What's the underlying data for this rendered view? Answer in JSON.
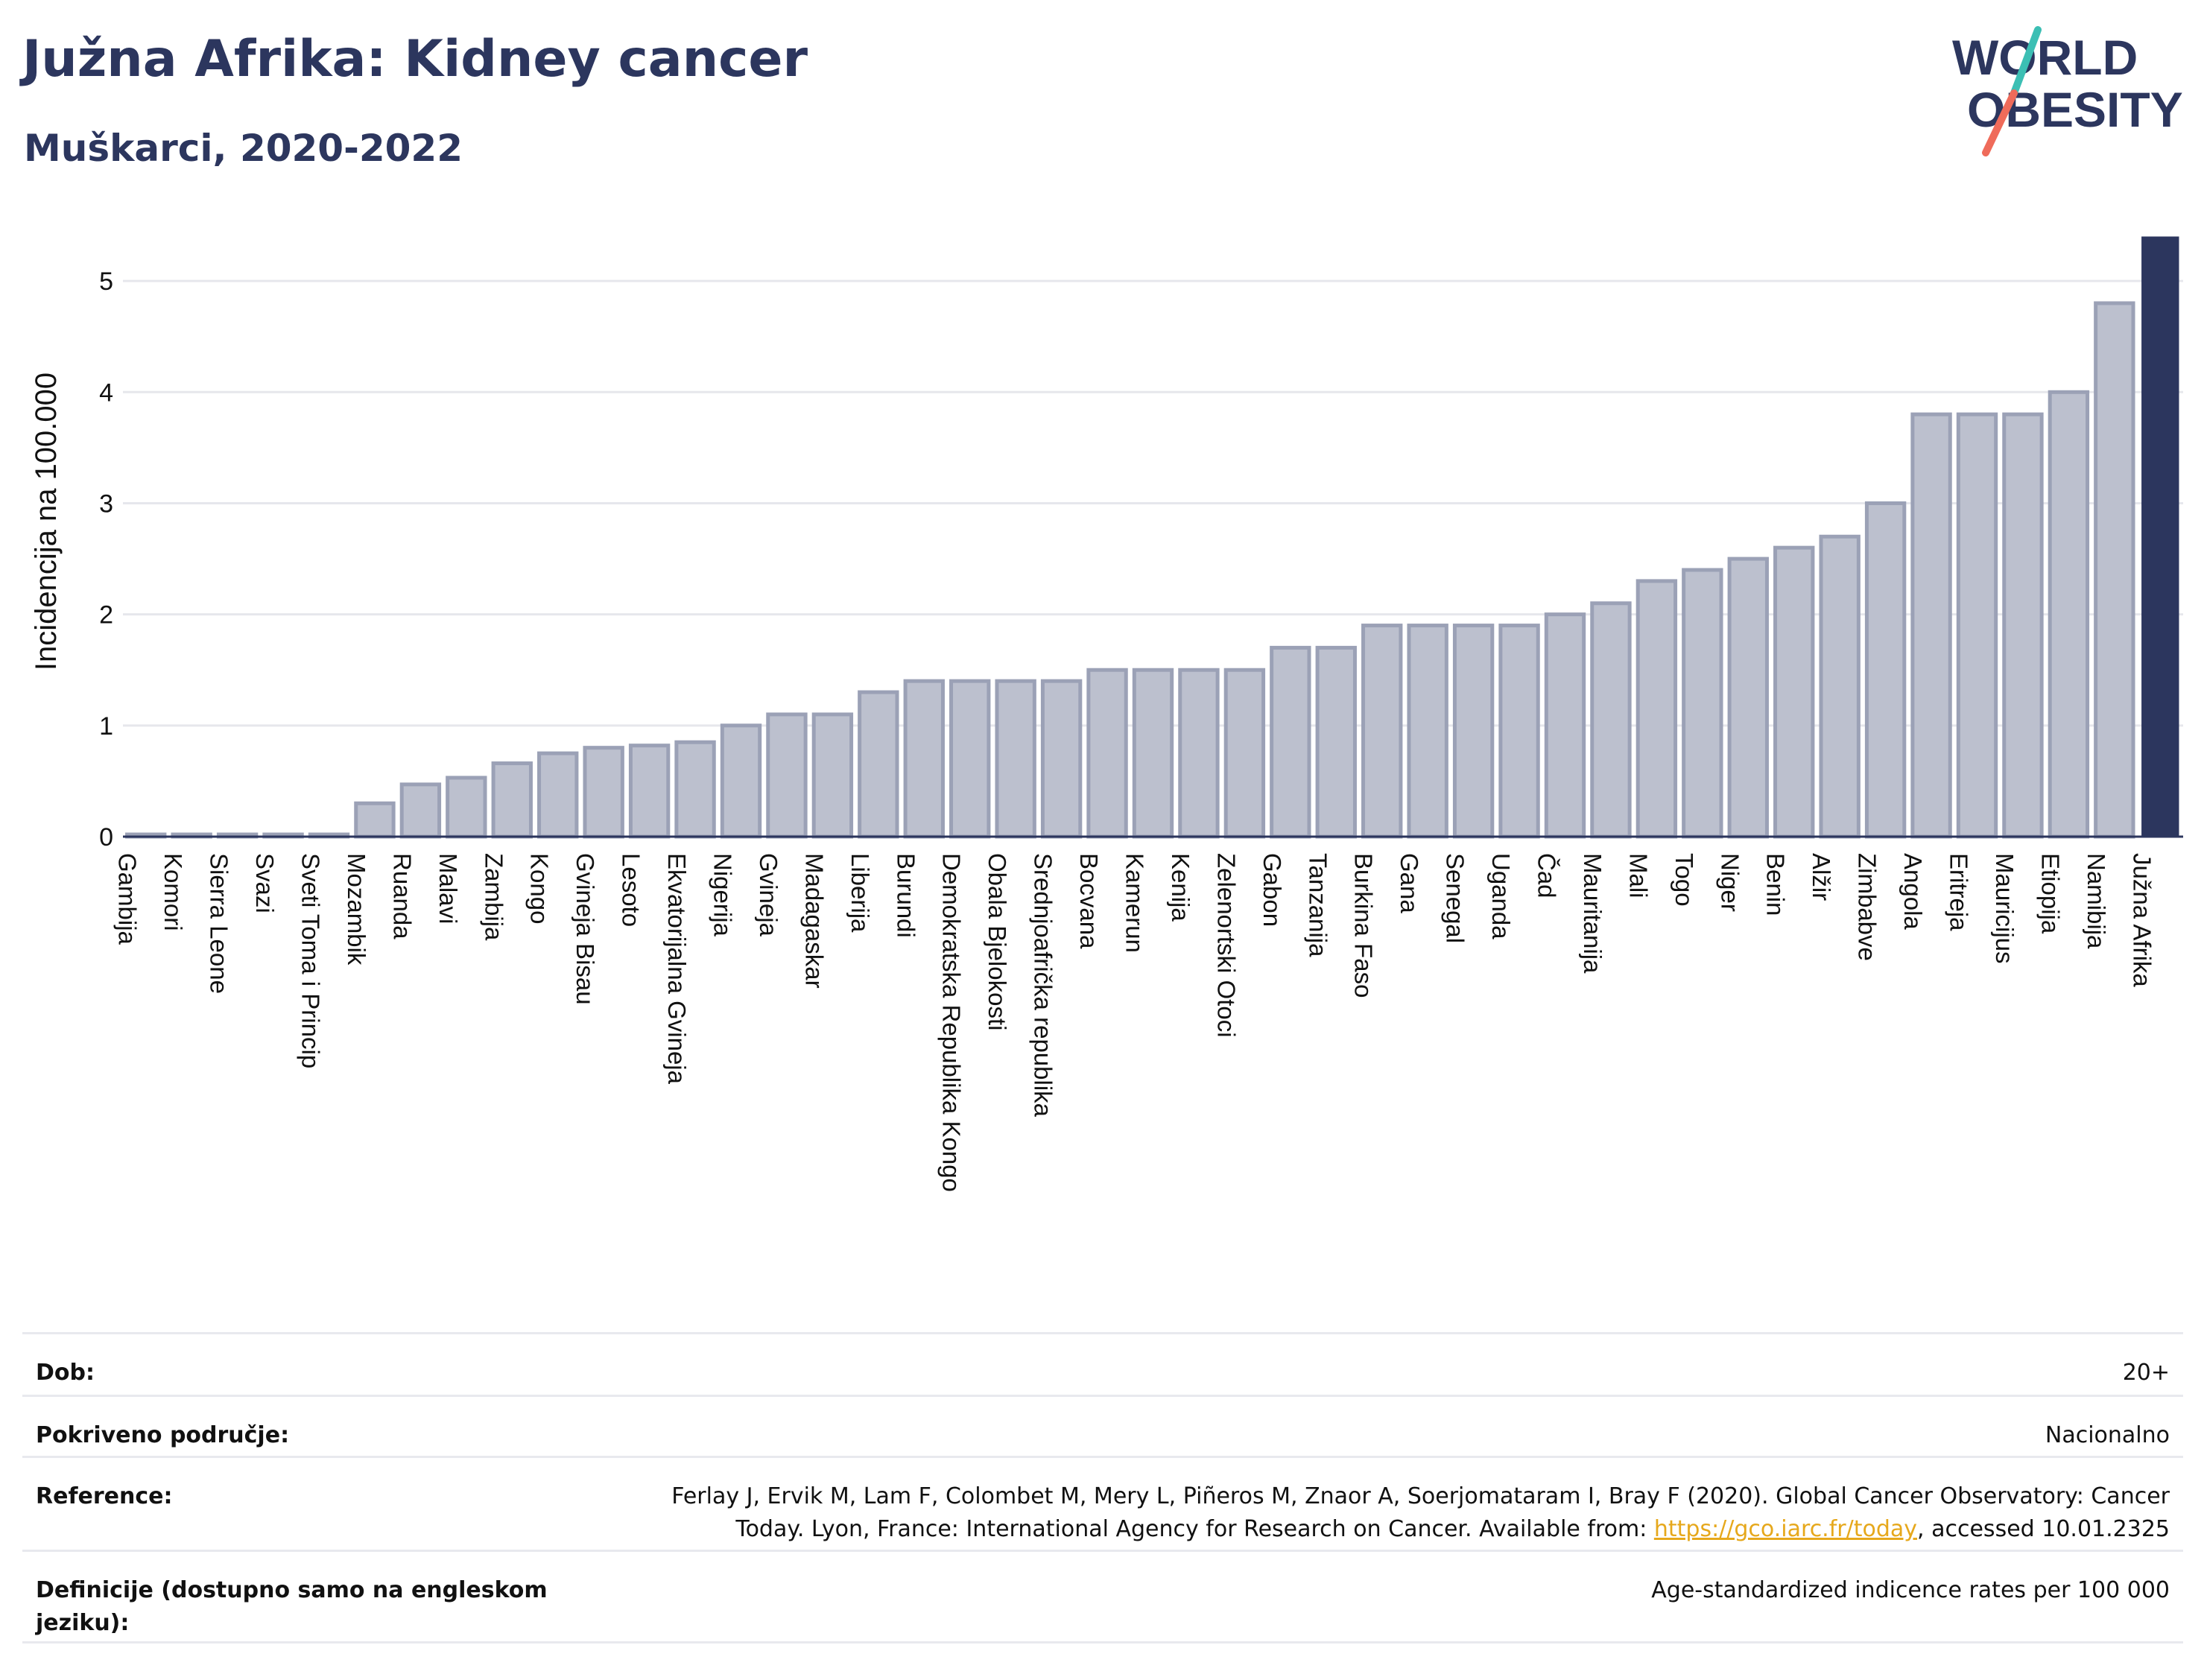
{
  "header": {
    "title": "Južna Afrika: Kidney cancer",
    "subtitle": "Muškarci, 2020-2022"
  },
  "logo": {
    "line1": "WORLD",
    "line2": "OBESITY"
  },
  "chart_data": {
    "type": "bar",
    "ylabel": "Incidencija na 100.000",
    "ylim": [
      0,
      5.45
    ],
    "yticks": [
      0,
      1,
      2,
      3,
      4,
      5
    ],
    "grid": true,
    "highlight": "Južna Afrika",
    "colors": {
      "bar": "#bcc0ce",
      "bar_border": "#9ba1b6",
      "highlight": "#2c365e"
    },
    "categories": [
      "Gambija",
      "Komori",
      "Sierra Leone",
      "Svazi",
      "Sveti Toma i Princip",
      "Mozambik",
      "Ruanda",
      "Malavi",
      "Zambija",
      "Kongo",
      "Gvineja Bisau",
      "Lesoto",
      "Ekvatorijalna Gvineja",
      "Nigerija",
      "Gvineja",
      "Madagaskar",
      "Liberija",
      "Burundi",
      "Demokratska Republika Kongo",
      "Obala Bjelokosti",
      "Srednjoafrička republika",
      "Bocvana",
      "Kamerun",
      "Kenija",
      "Zelenortski Otoci",
      "Gabon",
      "Tanzanija",
      "Burkina Faso",
      "Gana",
      "Senegal",
      "Uganda",
      "Čad",
      "Mauritanija",
      "Mali",
      "Togo",
      "Niger",
      "Benin",
      "Alžir",
      "Zimbabve",
      "Angola",
      "Eritreja",
      "Mauricijus",
      "Etiopija",
      "Namibija",
      "Južna Afrika"
    ],
    "values": [
      0.02,
      0.02,
      0.02,
      0.02,
      0.02,
      0.3,
      0.47,
      0.53,
      0.66,
      0.75,
      0.8,
      0.82,
      0.85,
      1.0,
      1.1,
      1.1,
      1.3,
      1.4,
      1.4,
      1.4,
      1.4,
      1.5,
      1.5,
      1.5,
      1.5,
      1.7,
      1.7,
      1.9,
      1.9,
      1.9,
      1.9,
      2.0,
      2.1,
      2.3,
      2.4,
      2.5,
      2.6,
      2.7,
      3.0,
      3.8,
      3.8,
      3.8,
      4.0,
      4.8,
      5.4
    ]
  },
  "meta": {
    "rows": [
      {
        "label": "Dob:",
        "value": "20+"
      },
      {
        "label": "Pokriveno područje:",
        "value": "Nacionalno"
      },
      {
        "label": "Reference:",
        "value_pre": "Ferlay J, Ervik M, Lam F, Colombet M, Mery L, Piñeros M, Znaor A, Soerjomataram I, Bray F (2020). Global Cancer Observatory: Cancer Today. Lyon, France: International Agency for Research on Cancer. Available from: ",
        "link": "https://gco.iarc.fr/today",
        "value_post": ", accessed 10.01.2325"
      },
      {
        "label": "Definicije (dostupno samo na engleskom jeziku):",
        "value": "Age-standardized indicence rates per 100 000"
      }
    ]
  }
}
